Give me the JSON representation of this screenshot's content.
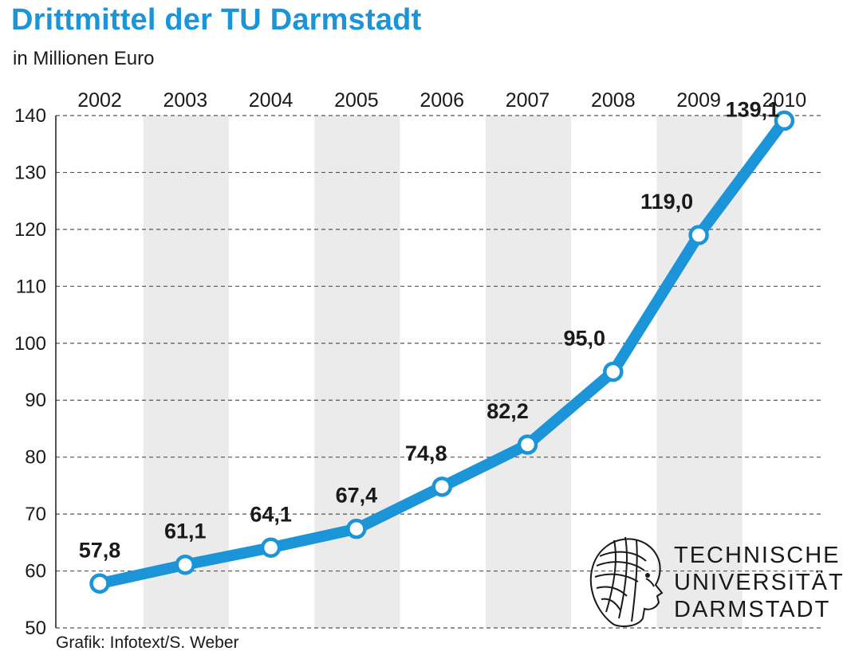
{
  "title": "Drittmittel der TU Darmstadt",
  "subtitle": "in Millionen Euro",
  "source": "Grafik: Infotext/S. Weber",
  "logo": {
    "lines": [
      "TECHNISCHE",
      "UNIVERSITÄT",
      "DARMSTADT"
    ],
    "icon": "athena-head-logo"
  },
  "colors": {
    "accent": "#1b95d8",
    "band": "#ebebeb",
    "grid": "#555555"
  },
  "chart_data": {
    "type": "line",
    "title": "Drittmittel der TU Darmstadt",
    "subtitle": "in Millionen Euro",
    "xlabel": "",
    "ylabel": "",
    "categories": [
      "2002",
      "2003",
      "2004",
      "2005",
      "2006",
      "2007",
      "2008",
      "2009",
      "2010"
    ],
    "values": [
      57.8,
      61.1,
      64.1,
      67.4,
      74.8,
      82.2,
      95.0,
      119.0,
      139.1
    ],
    "value_labels": [
      "57,8",
      "61,1",
      "64,1",
      "67,4",
      "74,8",
      "82,2",
      "95,0",
      "119,0",
      "139,1"
    ],
    "yticks": [
      50,
      60,
      70,
      80,
      90,
      100,
      110,
      120,
      130,
      140
    ],
    "ylim": [
      50,
      140
    ],
    "grid": true,
    "shaded_years": [
      "2003",
      "2005",
      "2007",
      "2009"
    ],
    "x_axis_position": "top"
  }
}
